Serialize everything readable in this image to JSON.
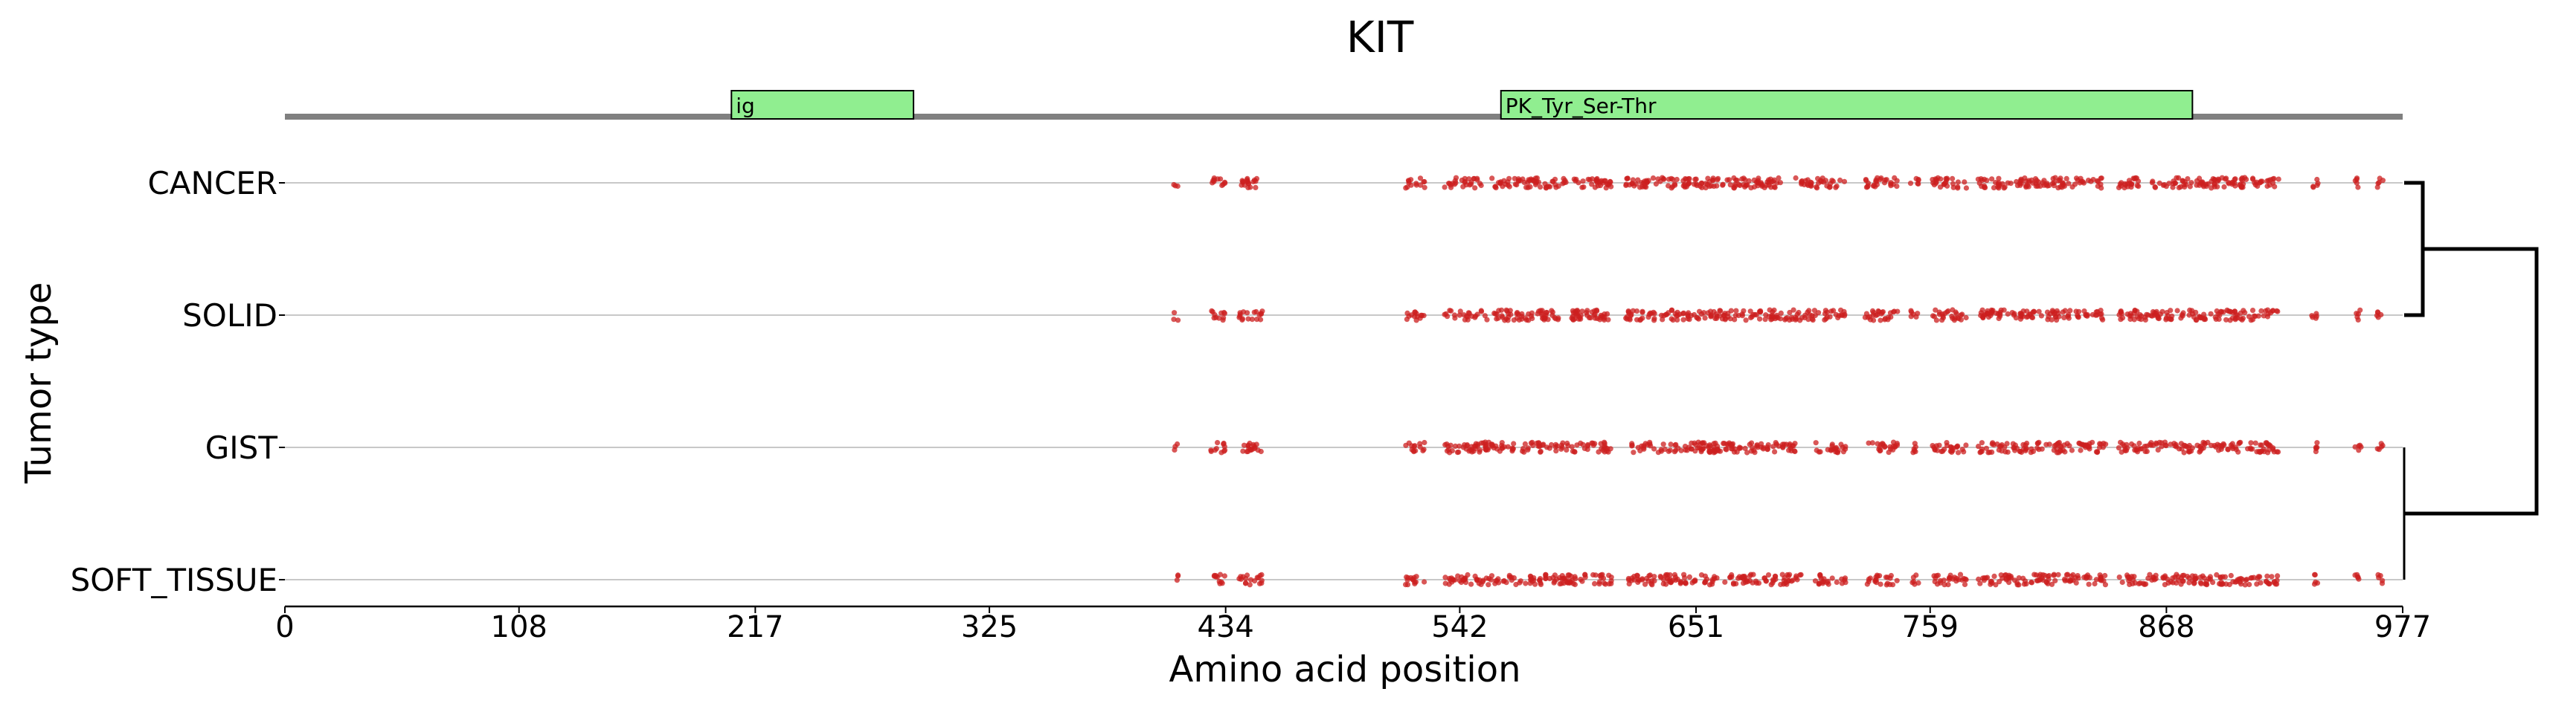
{
  "chart_data": {
    "type": "scatter",
    "title": "KIT",
    "xlabel": "Amino acid position",
    "ylabel": "Tumor type",
    "xlim": [
      0,
      977
    ],
    "x_ticks": [
      "0",
      "108",
      "217",
      "325",
      "434",
      "542",
      "651",
      "759",
      "868",
      "977"
    ],
    "x_tick_values": [
      0,
      108,
      217,
      325,
      434,
      542,
      651,
      759,
      868,
      977
    ],
    "categories": [
      "CANCER",
      "SOLID",
      "GIST",
      "SOFT_TISSUE"
    ],
    "domains": [
      {
        "label": "ig",
        "start": 206,
        "end": 290
      },
      {
        "label": "PK_Tyr_Ser-Thr",
        "start": 561,
        "end": 880
      }
    ],
    "protein_length": 977,
    "point_color": "#cc1f1f",
    "domain_color": "#90ee90",
    "grid": false,
    "dendrogram": {
      "pairs": [
        [
          "CANCER",
          "SOLID"
        ],
        [
          "GIST",
          "SOFT_TISSUE"
        ]
      ],
      "root": "all"
    },
    "series": [
      {
        "name": "CANCER",
        "mutation_clusters": [
          [
            410,
            412
          ],
          [
            427,
            434
          ],
          [
            440,
            451
          ],
          [
            517,
            526
          ],
          [
            535,
            552
          ],
          [
            556,
            612
          ],
          [
            618,
            720
          ],
          [
            728,
            744
          ],
          [
            750,
            754
          ],
          [
            760,
            776
          ],
          [
            781,
            840
          ],
          [
            846,
            920
          ],
          [
            935,
            938
          ],
          [
            955,
            958
          ],
          [
            965,
            968
          ]
        ]
      },
      {
        "name": "SOLID",
        "mutation_clusters": [
          [
            410,
            412
          ],
          [
            427,
            434
          ],
          [
            440,
            451
          ],
          [
            517,
            526
          ],
          [
            535,
            612
          ],
          [
            618,
            720
          ],
          [
            728,
            744
          ],
          [
            750,
            754
          ],
          [
            760,
            776
          ],
          [
            781,
            840
          ],
          [
            846,
            920
          ],
          [
            935,
            938
          ],
          [
            955,
            958
          ],
          [
            965,
            968
          ]
        ]
      },
      {
        "name": "GIST",
        "mutation_clusters": [
          [
            410,
            412
          ],
          [
            427,
            434
          ],
          [
            440,
            451
          ],
          [
            517,
            526
          ],
          [
            535,
            612
          ],
          [
            618,
            700
          ],
          [
            706,
            720
          ],
          [
            730,
            744
          ],
          [
            750,
            754
          ],
          [
            760,
            776
          ],
          [
            781,
            840
          ],
          [
            846,
            920
          ],
          [
            935,
            938
          ],
          [
            955,
            958
          ],
          [
            965,
            968
          ]
        ]
      },
      {
        "name": "SOFT_TISSUE",
        "mutation_clusters": [
          [
            410,
            412
          ],
          [
            427,
            434
          ],
          [
            440,
            451
          ],
          [
            517,
            526
          ],
          [
            535,
            612
          ],
          [
            618,
            700
          ],
          [
            706,
            720
          ],
          [
            730,
            744
          ],
          [
            750,
            754
          ],
          [
            760,
            776
          ],
          [
            781,
            840
          ],
          [
            846,
            920
          ],
          [
            935,
            938
          ],
          [
            955,
            958
          ],
          [
            965,
            968
          ]
        ]
      }
    ]
  }
}
